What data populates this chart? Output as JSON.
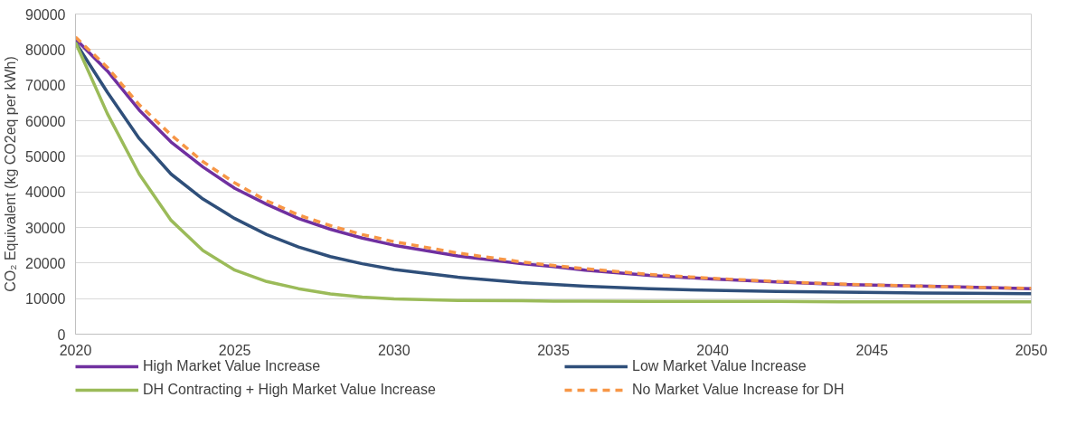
{
  "chart_data": {
    "type": "line",
    "ylabel": "CO₂ Equivalent (kg CO2eq per kWh)",
    "x": [
      2020,
      2021,
      2022,
      2023,
      2024,
      2025,
      2026,
      2027,
      2028,
      2029,
      2030,
      2032,
      2034,
      2035,
      2036,
      2038,
      2040,
      2042,
      2044,
      2046,
      2048,
      2050
    ],
    "xlim": [
      2020,
      2050
    ],
    "xticks": [
      2020,
      2025,
      2030,
      2035,
      2040,
      2045,
      2050
    ],
    "ylim": [
      0,
      90000
    ],
    "yticks": [
      0,
      10000,
      20000,
      30000,
      40000,
      50000,
      60000,
      70000,
      80000,
      90000
    ],
    "grid": "y",
    "legend": "bottom",
    "series": [
      {
        "name": "High Market Value Increase",
        "color": "#7030a0",
        "line_style": "solid",
        "values": [
          83000,
          74000,
          63000,
          54000,
          47000,
          41000,
          36500,
          32500,
          29500,
          27000,
          25000,
          22000,
          19800,
          19000,
          18000,
          16500,
          15500,
          14700,
          14000,
          13600,
          13200,
          12800
        ]
      },
      {
        "name": "Low Market Value Increase",
        "color": "#2f4f7a",
        "line_style": "solid",
        "values": [
          82000,
          68000,
          55000,
          45000,
          38000,
          32500,
          28000,
          24500,
          21800,
          19800,
          18200,
          16000,
          14500,
          14000,
          13500,
          12800,
          12300,
          12000,
          11800,
          11600,
          11500,
          11400
        ]
      },
      {
        "name": "DH Contracting + High Market Value Increase",
        "color": "#9bbb59",
        "line_style": "solid",
        "values": [
          82000,
          62000,
          45000,
          32000,
          23500,
          18000,
          14800,
          12800,
          11300,
          10400,
          9900,
          9500,
          9400,
          9300,
          9300,
          9200,
          9200,
          9200,
          9100,
          9100,
          9100,
          9100
        ]
      },
      {
        "name": "No Market Value Increase for DH",
        "color": "#f79646",
        "line_style": "dashed",
        "values": [
          83500,
          75000,
          64500,
          56000,
          48500,
          42500,
          37500,
          33500,
          30500,
          28000,
          26000,
          22800,
          20300,
          19300,
          18400,
          16800,
          15700,
          14800,
          14100,
          13600,
          13200,
          12900
        ]
      }
    ]
  }
}
